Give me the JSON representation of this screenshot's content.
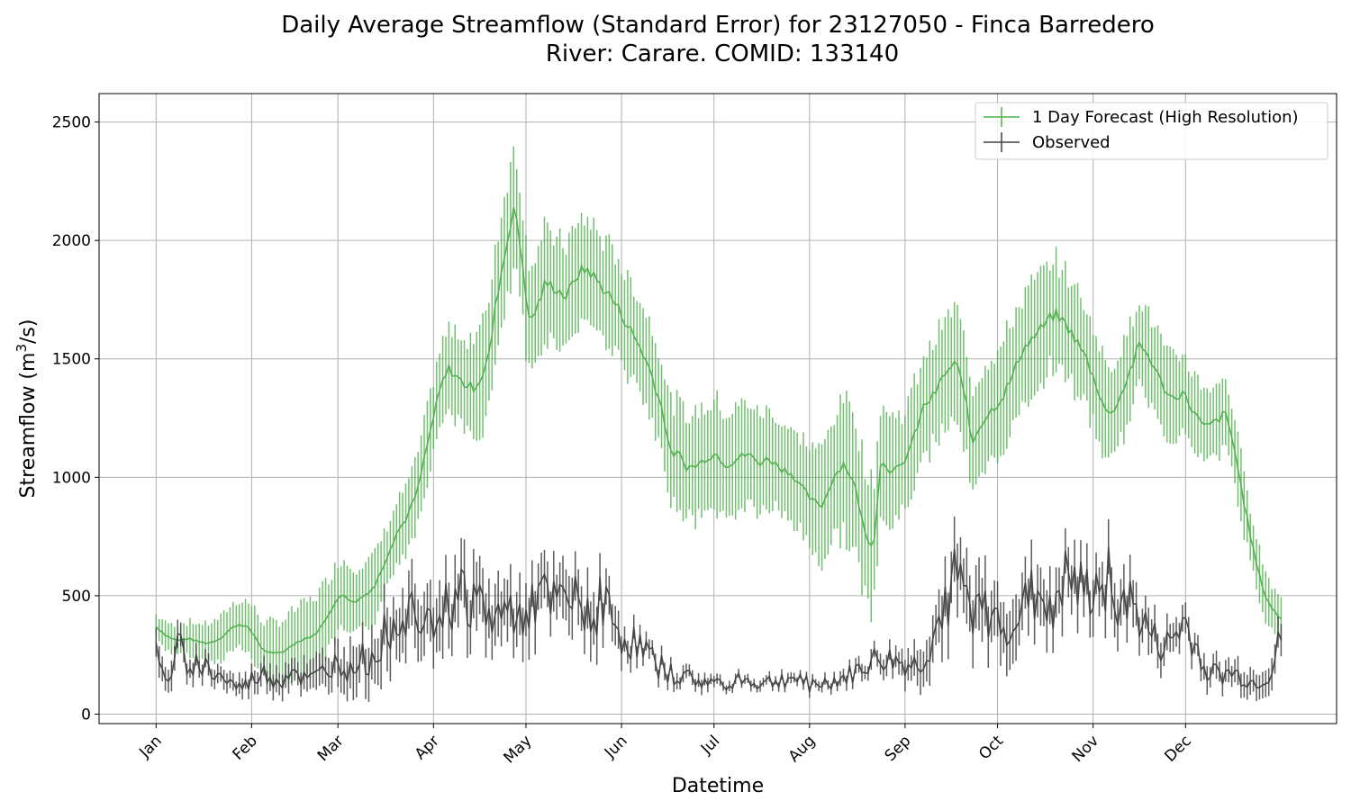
{
  "chart_data": {
    "type": "line",
    "title_line1": "Daily Average Streamflow (Standard Error) for 23127050 - Finca Barredero",
    "title_line2": "River: Carare. COMID: 133140",
    "xlabel": "Datetime",
    "ylabel": "Streamflow (m",
    "ylabel_sup": "3",
    "ylabel_tail": "/s)",
    "ylim": [
      -40,
      2620
    ],
    "yticks": [
      0,
      500,
      1000,
      1500,
      2000,
      2500
    ],
    "xlim": [
      -18.5,
      383
    ],
    "xticks": [
      {
        "day": 0,
        "label": "Jan"
      },
      {
        "day": 31,
        "label": "Feb"
      },
      {
        "day": 59,
        "label": "Mar"
      },
      {
        "day": 90,
        "label": "Apr"
      },
      {
        "day": 120,
        "label": "May"
      },
      {
        "day": 151,
        "label": "Jun"
      },
      {
        "day": 181,
        "label": "Jul"
      },
      {
        "day": 212,
        "label": "Aug"
      },
      {
        "day": 243,
        "label": "Sep"
      },
      {
        "day": 273,
        "label": "Oct"
      },
      {
        "day": 304,
        "label": "Nov"
      },
      {
        "day": 334,
        "label": "Dec"
      }
    ],
    "grid": true,
    "legend_placement": "top-right",
    "series": [
      {
        "name": "1 Day Forecast (High Resolution)",
        "color": "#4daf4a",
        "anchors": [
          [
            0,
            370
          ],
          [
            4,
            330
          ],
          [
            8,
            310
          ],
          [
            12,
            320
          ],
          [
            16,
            305
          ],
          [
            20,
            300
          ],
          [
            24,
            320
          ],
          [
            28,
            360
          ],
          [
            31,
            380
          ],
          [
            34,
            370
          ],
          [
            37,
            330
          ],
          [
            40,
            270
          ],
          [
            44,
            255
          ],
          [
            48,
            265
          ],
          [
            52,
            300
          ],
          [
            56,
            320
          ],
          [
            59,
            330
          ],
          [
            62,
            370
          ],
          [
            66,
            450
          ],
          [
            70,
            510
          ],
          [
            74,
            470
          ],
          [
            78,
            500
          ],
          [
            82,
            540
          ],
          [
            86,
            650
          ],
          [
            90,
            760
          ],
          [
            94,
            830
          ],
          [
            98,
            940
          ],
          [
            101,
            1100
          ],
          [
            104,
            1250
          ],
          [
            107,
            1390
          ],
          [
            110,
            1460
          ],
          [
            113,
            1420
          ],
          [
            116,
            1390
          ],
          [
            119,
            1380
          ],
          [
            122,
            1420
          ],
          [
            125,
            1520
          ],
          [
            128,
            1780
          ],
          [
            131,
            1950
          ],
          [
            134,
            2150
          ],
          [
            137,
            1950
          ],
          [
            140,
            1650
          ],
          [
            143,
            1720
          ],
          [
            146,
            1820
          ],
          [
            150,
            1800
          ],
          [
            154,
            1760
          ],
          [
            158,
            1860
          ],
          [
            162,
            1880
          ],
          [
            166,
            1820
          ],
          [
            170,
            1770
          ],
          [
            174,
            1700
          ],
          [
            178,
            1620
          ],
          [
            182,
            1540
          ],
          [
            186,
            1430
          ],
          [
            190,
            1280
          ],
          [
            193,
            1100
          ],
          [
            196,
            1100
          ],
          [
            199,
            1040
          ],
          [
            203,
            1050
          ],
          [
            206,
            1080
          ],
          [
            210,
            1100
          ],
          [
            214,
            1050
          ],
          [
            218,
            1080
          ],
          [
            222,
            1100
          ],
          [
            226,
            1060
          ],
          [
            230,
            1080
          ],
          [
            234,
            1040
          ],
          [
            238,
            1020
          ],
          [
            242,
            960
          ],
          [
            246,
            900
          ],
          [
            250,
            880
          ],
          [
            254,
            1000
          ],
          [
            258,
            1060
          ],
          [
            262,
            970
          ],
          [
            266,
            760
          ],
          [
            269,
            700
          ],
          [
            272,
            1080
          ],
          [
            276,
            1020
          ],
          [
            280,
            1050
          ],
          [
            284,
            1160
          ],
          [
            288,
            1300
          ],
          [
            292,
            1350
          ],
          [
            296,
            1440
          ],
          [
            300,
            1480
          ],
          [
            303,
            1380
          ],
          [
            306,
            1140
          ],
          [
            309,
            1220
          ],
          [
            313,
            1280
          ],
          [
            317,
            1330
          ],
          [
            321,
            1420
          ],
          [
            325,
            1540
          ],
          [
            329,
            1590
          ],
          [
            333,
            1640
          ],
          [
            337,
            1690
          ],
          [
            341,
            1650
          ],
          [
            345,
            1580
          ],
          [
            349,
            1500
          ],
          [
            353,
            1380
          ],
          [
            357,
            1260
          ],
          [
            361,
            1320
          ],
          [
            365,
            1440
          ],
          [
            369,
            1560
          ],
          [
            373,
            1500
          ],
          [
            377,
            1400
          ],
          [
            381,
            1330
          ],
          [
            385,
            1360
          ],
          [
            389,
            1280
          ],
          [
            393,
            1210
          ],
          [
            397,
            1230
          ],
          [
            401,
            1270
          ],
          [
            404,
            1150
          ],
          [
            407,
            960
          ],
          [
            410,
            780
          ],
          [
            413,
            620
          ],
          [
            416,
            500
          ],
          [
            419,
            440
          ],
          [
            422,
            400
          ]
        ],
        "err_anchors": [
          [
            0,
            50
          ],
          [
            30,
            100
          ],
          [
            60,
            160
          ],
          [
            90,
            130
          ],
          [
            110,
            170
          ],
          [
            130,
            260
          ],
          [
            150,
            220
          ],
          [
            180,
            200
          ],
          [
            210,
            230
          ],
          [
            240,
            190
          ],
          [
            262,
            300
          ],
          [
            280,
            210
          ],
          [
            300,
            230
          ],
          [
            330,
            230
          ],
          [
            360,
            200
          ],
          [
            390,
            160
          ],
          [
            404,
            140
          ],
          [
            422,
            90
          ]
        ]
      },
      {
        "name": "Observed",
        "color": "#404040",
        "anchors": [
          [
            0,
            240
          ],
          [
            3,
            150
          ],
          [
            6,
            170
          ],
          [
            9,
            280
          ],
          [
            12,
            240
          ],
          [
            16,
            210
          ],
          [
            20,
            200
          ],
          [
            24,
            170
          ],
          [
            28,
            150
          ],
          [
            32,
            120
          ],
          [
            36,
            110
          ],
          [
            40,
            150
          ],
          [
            44,
            170
          ],
          [
            48,
            150
          ],
          [
            52,
            140
          ],
          [
            56,
            200
          ],
          [
            60,
            150
          ],
          [
            64,
            140
          ],
          [
            68,
            170
          ],
          [
            72,
            200
          ],
          [
            76,
            220
          ],
          [
            80,
            170
          ],
          [
            84,
            250
          ],
          [
            88,
            200
          ],
          [
            92,
            300
          ],
          [
            96,
            360
          ],
          [
            100,
            410
          ],
          [
            104,
            430
          ],
          [
            108,
            480
          ],
          [
            112,
            460
          ],
          [
            116,
            420
          ],
          [
            120,
            450
          ],
          [
            124,
            500
          ],
          [
            128,
            510
          ],
          [
            132,
            480
          ],
          [
            136,
            420
          ],
          [
            140,
            400
          ],
          [
            144,
            420
          ],
          [
            148,
            440
          ],
          [
            152,
            460
          ],
          [
            156,
            470
          ],
          [
            160,
            480
          ],
          [
            164,
            440
          ],
          [
            168,
            480
          ],
          [
            172,
            460
          ],
          [
            176,
            450
          ],
          [
            180,
            420
          ],
          [
            184,
            500
          ],
          [
            188,
            380
          ],
          [
            192,
            330
          ],
          [
            196,
            300
          ],
          [
            200,
            280
          ],
          [
            204,
            240
          ],
          [
            208,
            200
          ],
          [
            212,
            170
          ],
          [
            216,
            160
          ],
          [
            220,
            150
          ],
          [
            224,
            140
          ],
          [
            228,
            130
          ],
          [
            232,
            130
          ],
          [
            236,
            140
          ],
          [
            240,
            150
          ],
          [
            244,
            140
          ],
          [
            248,
            130
          ],
          [
            252,
            130
          ],
          [
            256,
            140
          ],
          [
            260,
            150
          ],
          [
            264,
            150
          ],
          [
            268,
            130
          ],
          [
            272,
            120
          ],
          [
            276,
            130
          ],
          [
            280,
            140
          ],
          [
            284,
            150
          ],
          [
            288,
            170
          ],
          [
            292,
            200
          ],
          [
            296,
            220
          ],
          [
            300,
            230
          ],
          [
            304,
            220
          ],
          [
            308,
            210
          ],
          [
            312,
            200
          ],
          [
            316,
            220
          ],
          [
            320,
            300
          ],
          [
            324,
            420
          ],
          [
            328,
            560
          ],
          [
            332,
            520
          ],
          [
            336,
            450
          ],
          [
            340,
            420
          ],
          [
            344,
            400
          ],
          [
            348,
            380
          ],
          [
            352,
            390
          ],
          [
            356,
            410
          ],
          [
            360,
            470
          ],
          [
            364,
            500
          ],
          [
            368,
            480
          ],
          [
            372,
            520
          ],
          [
            376,
            560
          ],
          [
            380,
            510
          ],
          [
            384,
            500
          ],
          [
            388,
            540
          ],
          [
            392,
            600
          ],
          [
            396,
            500
          ],
          [
            400,
            480
          ],
          [
            404,
            420
          ],
          [
            408,
            360
          ],
          [
            412,
            300
          ],
          [
            416,
            270
          ],
          [
            420,
            320
          ],
          [
            424,
            380
          ],
          [
            428,
            300
          ],
          [
            432,
            200
          ],
          [
            436,
            170
          ],
          [
            440,
            160
          ],
          [
            444,
            170
          ],
          [
            448,
            150
          ],
          [
            452,
            130
          ],
          [
            456,
            140
          ],
          [
            460,
            170
          ],
          [
            464,
            320
          ]
        ],
        "err_anchors": [
          [
            0,
            60
          ],
          [
            30,
            35
          ],
          [
            60,
            60
          ],
          [
            90,
            110
          ],
          [
            120,
            130
          ],
          [
            150,
            120
          ],
          [
            180,
            110
          ],
          [
            200,
            40
          ],
          [
            240,
            20
          ],
          [
            270,
            20
          ],
          [
            290,
            30
          ],
          [
            310,
            60
          ],
          [
            330,
            140
          ],
          [
            360,
            120
          ],
          [
            400,
            100
          ],
          [
            430,
            50
          ],
          [
            464,
            60
          ]
        ]
      }
    ]
  }
}
